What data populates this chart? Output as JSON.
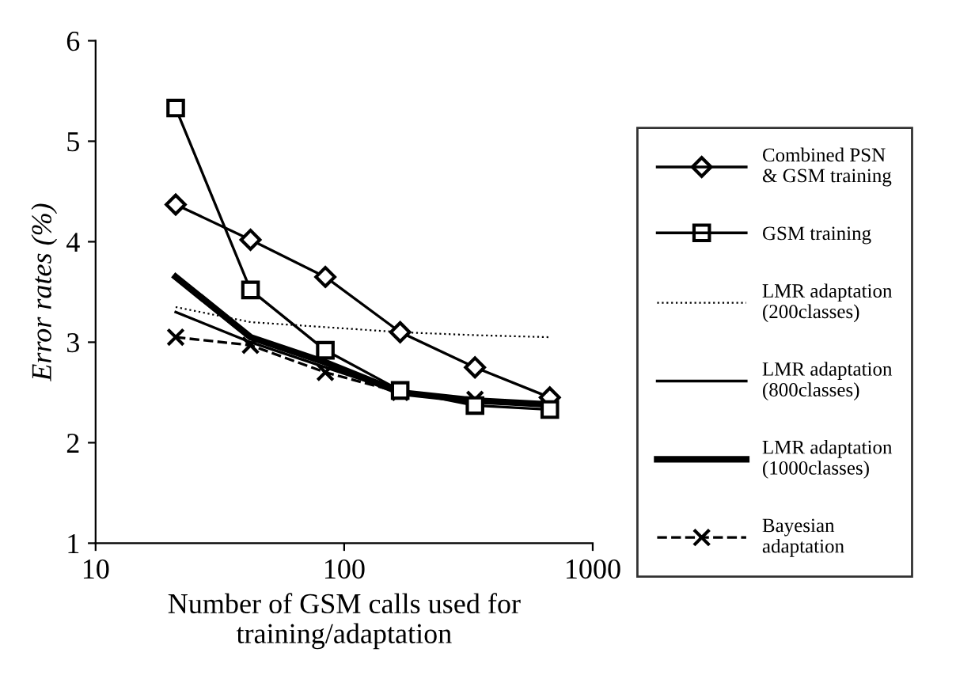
{
  "chart_data": {
    "type": "line",
    "xlabel": "Number of GSM calls used for\ntraining/adaptation",
    "ylabel": "Error rates (%)",
    "x": [
      21,
      42,
      84,
      168,
      336,
      672
    ],
    "log": "x",
    "xlim": [
      10,
      1000
    ],
    "xticks": [
      10,
      100,
      1000
    ],
    "ylim": [
      1,
      6
    ],
    "yticks": [
      1,
      2,
      3,
      4,
      5,
      6
    ],
    "grid": false,
    "legend": "right",
    "series": [
      {
        "name": "Combined PSN\n& GSM training",
        "color": "#000000",
        "marker": "diamond",
        "line_style": "solid",
        "values": [
          4.37,
          4.02,
          3.65,
          3.1,
          2.75,
          2.45
        ]
      },
      {
        "name": "GSM training",
        "color": "#000000",
        "marker": "square",
        "line_style": "solid",
        "values": [
          5.33,
          3.52,
          2.92,
          2.52,
          2.37,
          2.33
        ]
      },
      {
        "name": "LMR adaptation\n(200classes)",
        "color": "#000000",
        "marker": "none",
        "line_style": "dotted",
        "values": [
          3.35,
          3.2,
          3.15,
          3.1,
          3.07,
          3.05
        ]
      },
      {
        "name": "LMR adaptation\n(800classes)",
        "color": "#000000",
        "marker": "none",
        "line_style": "solid",
        "values": [
          3.3,
          3.0,
          2.75,
          2.5,
          2.42,
          2.38
        ]
      },
      {
        "name": "LMR adaptation\n(1000classes)",
        "color": "#000000",
        "marker": "none",
        "line_style": "solid",
        "values": [
          3.65,
          3.05,
          2.8,
          2.5,
          2.42,
          2.38
        ]
      },
      {
        "name": "Bayesian\nadaptation",
        "color": "#000000",
        "marker": "cross",
        "line_style": "dashed",
        "values": [
          3.05,
          2.97,
          2.7,
          2.5,
          2.43,
          2.38
        ]
      }
    ]
  }
}
